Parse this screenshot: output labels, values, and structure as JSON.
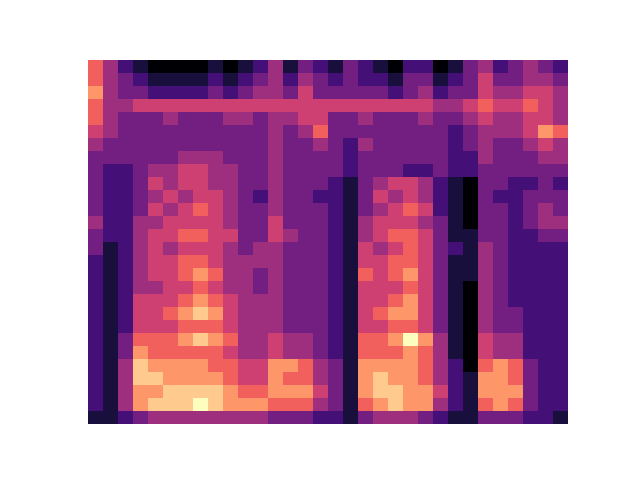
{
  "chart_data": {
    "type": "heatmap",
    "tick_labels": false,
    "cells": [
      [
        7,
        5,
        3,
        2,
        1,
        1,
        1,
        1,
        2,
        1,
        2,
        3,
        5,
        2,
        4,
        3,
        2,
        4,
        3,
        2,
        1,
        3,
        3,
        1,
        2,
        4,
        5,
        3,
        4,
        5,
        4,
        3
      ],
      [
        7,
        5,
        4,
        3,
        2,
        2,
        2,
        2,
        3,
        2,
        3,
        4,
        5,
        3,
        5,
        4,
        3,
        4,
        3,
        3,
        2,
        4,
        4,
        2,
        3,
        4,
        6,
        4,
        4,
        5,
        5,
        4
      ],
      [
        8,
        5,
        4,
        4,
        3,
        3,
        3,
        3,
        4,
        3,
        4,
        5,
        5,
        4,
        6,
        4,
        4,
        4,
        4,
        4,
        3,
        4,
        5,
        3,
        4,
        4,
        6,
        5,
        5,
        6,
        6,
        5
      ],
      [
        7,
        5,
        5,
        6,
        6,
        6,
        6,
        6,
        6,
        6,
        6,
        6,
        6,
        6,
        6,
        6,
        6,
        6,
        6,
        6,
        6,
        6,
        6,
        5,
        5,
        6,
        7,
        6,
        6,
        7,
        6,
        5
      ],
      [
        7,
        5,
        4,
        4,
        4,
        5,
        4,
        4,
        4,
        5,
        5,
        4,
        5,
        5,
        6,
        6,
        4,
        4,
        5,
        4,
        4,
        4,
        5,
        4,
        4,
        5,
        6,
        5,
        5,
        6,
        6,
        5
      ],
      [
        6,
        5,
        4,
        4,
        4,
        4,
        4,
        4,
        4,
        4,
        4,
        4,
        5,
        4,
        5,
        7,
        4,
        4,
        4,
        4,
        4,
        4,
        4,
        4,
        3,
        4,
        5,
        5,
        5,
        6,
        8,
        7
      ],
      [
        5,
        4,
        4,
        4,
        4,
        4,
        4,
        4,
        4,
        4,
        4,
        4,
        5,
        4,
        4,
        5,
        4,
        3,
        5,
        4,
        4,
        4,
        4,
        4,
        3,
        4,
        5,
        4,
        4,
        5,
        6,
        5
      ],
      [
        4,
        4,
        4,
        4,
        4,
        4,
        5,
        5,
        5,
        4,
        4,
        4,
        5,
        4,
        4,
        4,
        4,
        3,
        4,
        4,
        4,
        4,
        4,
        4,
        3,
        3,
        5,
        4,
        4,
        4,
        5,
        5
      ],
      [
        4,
        3,
        3,
        4,
        5,
        5,
        6,
        6,
        5,
        5,
        4,
        4,
        5,
        4,
        4,
        4,
        4,
        3,
        4,
        4,
        4,
        3,
        3,
        4,
        3,
        3,
        4,
        4,
        4,
        4,
        4,
        4
      ],
      [
        4,
        3,
        3,
        4,
        6,
        5,
        6,
        6,
        5,
        5,
        4,
        4,
        5,
        4,
        4,
        4,
        3,
        2,
        4,
        5,
        6,
        6,
        5,
        3,
        2,
        1,
        4,
        4,
        3,
        3,
        4,
        3
      ],
      [
        4,
        3,
        3,
        4,
        5,
        6,
        5,
        6,
        6,
        5,
        4,
        3,
        5,
        4,
        4,
        3,
        3,
        2,
        4,
        6,
        5,
        6,
        5,
        3,
        2,
        1,
        4,
        3,
        3,
        4,
        4,
        4
      ],
      [
        4,
        3,
        3,
        4,
        6,
        5,
        6,
        7,
        6,
        5,
        4,
        4,
        5,
        4,
        4,
        4,
        3,
        2,
        4,
        5,
        6,
        7,
        6,
        3,
        2,
        1,
        4,
        4,
        3,
        4,
        5,
        4
      ],
      [
        5,
        3,
        3,
        5,
        5,
        6,
        6,
        6,
        6,
        5,
        4,
        4,
        6,
        4,
        4,
        4,
        3,
        2,
        5,
        6,
        6,
        6,
        5,
        4,
        2,
        1,
        4,
        4,
        3,
        4,
        5,
        5
      ],
      [
        4,
        3,
        3,
        5,
        6,
        6,
        7,
        7,
        6,
        6,
        4,
        4,
        6,
        5,
        4,
        4,
        3,
        2,
        5,
        6,
        7,
        7,
        6,
        4,
        2,
        2,
        4,
        4,
        3,
        3,
        4,
        4
      ],
      [
        4,
        2,
        3,
        5,
        6,
        5,
        6,
        6,
        6,
        5,
        4,
        5,
        5,
        4,
        4,
        4,
        3,
        2,
        6,
        5,
        6,
        7,
        6,
        4,
        3,
        2,
        5,
        4,
        3,
        3,
        3,
        3
      ],
      [
        3,
        2,
        3,
        5,
        6,
        6,
        7,
        7,
        6,
        5,
        5,
        5,
        5,
        4,
        4,
        4,
        3,
        2,
        6,
        6,
        7,
        7,
        6,
        4,
        2,
        2,
        5,
        4,
        3,
        3,
        3,
        3
      ],
      [
        3,
        2,
        3,
        5,
        6,
        6,
        7,
        8,
        7,
        5,
        5,
        4,
        5,
        4,
        4,
        4,
        3,
        2,
        7,
        6,
        7,
        8,
        6,
        4,
        2,
        2,
        5,
        4,
        3,
        3,
        3,
        3
      ],
      [
        3,
        2,
        3,
        5,
        5,
        6,
        6,
        7,
        6,
        5,
        5,
        4,
        5,
        4,
        4,
        4,
        3,
        2,
        6,
        6,
        6,
        7,
        6,
        4,
        2,
        1,
        5,
        4,
        3,
        3,
        3,
        3
      ],
      [
        3,
        2,
        3,
        6,
        6,
        6,
        7,
        8,
        7,
        6,
        5,
        5,
        5,
        4,
        4,
        4,
        3,
        2,
        6,
        6,
        7,
        8,
        6,
        4,
        2,
        1,
        5,
        4,
        3,
        3,
        3,
        3
      ],
      [
        3,
        2,
        3,
        6,
        6,
        7,
        8,
        9,
        8,
        6,
        5,
        5,
        5,
        4,
        4,
        4,
        3,
        2,
        6,
        7,
        8,
        8,
        6,
        4,
        2,
        1,
        5,
        4,
        4,
        3,
        3,
        3
      ],
      [
        3,
        2,
        3,
        6,
        6,
        6,
        7,
        7,
        7,
        6,
        5,
        5,
        5,
        4,
        4,
        4,
        3,
        2,
        6,
        6,
        7,
        7,
        6,
        4,
        2,
        1,
        5,
        4,
        4,
        3,
        3,
        3
      ],
      [
        3,
        2,
        4,
        7,
        7,
        7,
        8,
        9,
        8,
        7,
        5,
        5,
        6,
        5,
        5,
        4,
        3,
        2,
        7,
        7,
        8,
        10,
        8,
        5,
        2,
        1,
        6,
        5,
        5,
        3,
        3,
        3
      ],
      [
        3,
        2,
        4,
        8,
        7,
        7,
        7,
        7,
        7,
        6,
        5,
        5,
        6,
        5,
        5,
        4,
        3,
        2,
        7,
        7,
        7,
        8,
        7,
        5,
        2,
        1,
        6,
        5,
        5,
        3,
        3,
        3
      ],
      [
        3,
        2,
        5,
        9,
        8,
        8,
        8,
        8,
        7,
        7,
        6,
        6,
        8,
        8,
        7,
        5,
        4,
        2,
        8,
        8,
        8,
        8,
        7,
        5,
        3,
        1,
        7,
        8,
        7,
        4,
        3,
        3
      ],
      [
        3,
        2,
        5,
        9,
        9,
        8,
        8,
        8,
        8,
        7,
        6,
        6,
        8,
        7,
        7,
        5,
        4,
        2,
        8,
        9,
        8,
        8,
        7,
        5,
        3,
        2,
        8,
        8,
        7,
        4,
        3,
        3
      ],
      [
        3,
        2,
        5,
        8,
        8,
        9,
        9,
        9,
        9,
        8,
        7,
        7,
        8,
        8,
        8,
        6,
        4,
        2,
        8,
        9,
        9,
        8,
        8,
        6,
        3,
        2,
        8,
        8,
        8,
        4,
        3,
        3
      ],
      [
        3,
        2,
        5,
        8,
        9,
        9,
        9,
        10,
        9,
        8,
        8,
        8,
        7,
        7,
        7,
        5,
        4,
        2,
        7,
        8,
        9,
        8,
        8,
        5,
        3,
        2,
        7,
        8,
        7,
        4,
        3,
        3
      ],
      [
        2,
        2,
        3,
        4,
        5,
        5,
        5,
        5,
        5,
        5,
        5,
        5,
        4,
        4,
        4,
        3,
        3,
        2,
        4,
        5,
        5,
        5,
        4,
        3,
        2,
        2,
        4,
        4,
        4,
        3,
        3,
        2
      ]
    ]
  }
}
